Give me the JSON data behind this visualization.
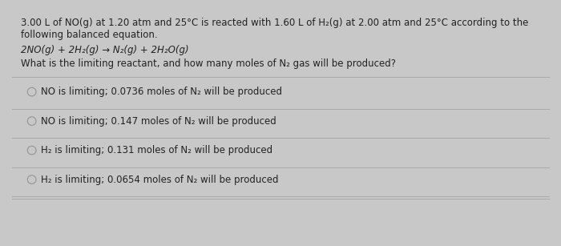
{
  "bg_color": "#c8c8c8",
  "inner_bg_color": "#dcdcdc",
  "text_color": "#222222",
  "line1": "3.00 L of NO(g) at 1.20 atm and 25°C is reacted with 1.60 L of H₂(g) at 2.00 atm and 25°C according to the",
  "line2": "following balanced equation.",
  "equation": "2NO(g) + 2H₂(g) → N₂(g) + 2H₂O(g)",
  "question": "What is the limiting reactant, and how many moles of N₂ gas will be produced?",
  "options": [
    "NO is limiting; 0.0736 moles of N₂ will be produced",
    "NO is limiting; 0.147 moles of N₂ will be produced",
    "H₂ is limiting; 0.131 moles of N₂ will be produced",
    "H₂ is limiting; 0.0654 moles of N₂ will be produced"
  ],
  "divider_color": "#aaaaaa",
  "circle_color": "#999999",
  "font_size": 8.5
}
